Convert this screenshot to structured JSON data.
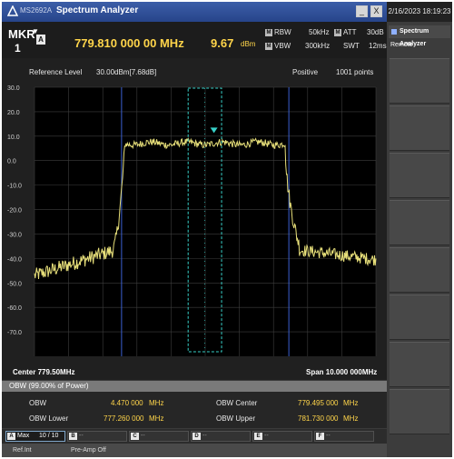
{
  "titlebar": {
    "model": "MS2692A",
    "app_name": "Spectrum Analyzer",
    "min_glyph": "_",
    "close_glyph": "X"
  },
  "right_panel": {
    "datetime": "2/16/2023 18:19:23",
    "title": "Spectrum Analyzer",
    "remote": "Remote"
  },
  "marker": {
    "label": "MKR",
    "arrow": "▼",
    "number": "1",
    "icon": "A",
    "frequency": "779.810 000 00 MHz",
    "level": "9.67",
    "level_unit": "dBm",
    "rbw_label": "RBW",
    "rbw_value": "50kHz",
    "vbw_label": "VBW",
    "vbw_value": "300kHz",
    "att_label": "ATT",
    "att_value": "30dB",
    "swt_label": "SWT",
    "swt_value": "12ms",
    "param_icon": "M"
  },
  "graph": {
    "ref_label": "Reference Level",
    "ref_value": "30.00dBm[7.68dB]",
    "detector": "Positive",
    "points": "1001 points",
    "y_ticks": [
      "30.0",
      "20.0",
      "10.0",
      "0.0",
      "-10.0",
      "-20.0",
      "-30.0",
      "-40.0",
      "-50.0",
      "-60.0",
      "-70.0"
    ],
    "center": "Center 779.50MHz",
    "span": "Span 10.000 000MHz",
    "colors": {
      "trace": "#e8e07a",
      "grid": "#3e3e3e",
      "marker": "#37d0c8",
      "obw_line": "#3a5fd0",
      "background": "#000000"
    },
    "trace_profile": {
      "x_from": 0,
      "x_to": 1,
      "floor_left": -47.0,
      "floor_right": -40.5,
      "plateau": 7.0,
      "band_start": 0.265,
      "band_end": 0.735
    }
  },
  "obw": {
    "title": "OBW (99.00% of Power)",
    "obw_label": "OBW",
    "obw_value": "4.470 000",
    "obw_unit": "MHz",
    "center_label": "OBW Center",
    "center_value": "779.495 000",
    "center_unit": "MHz",
    "lower_label": "OBW Lower",
    "lower_value": "777.260 000",
    "lower_unit": "MHz",
    "upper_label": "OBW Upper",
    "upper_value": "781.730 000",
    "upper_unit": "MHz"
  },
  "trace_bar": {
    "active_icon": "A",
    "active_label": "Max",
    "active_count": "10 / 10",
    "slots": [
      {
        "icon": "B",
        "value": "--"
      },
      {
        "icon": "C",
        "value": "--"
      },
      {
        "icon": "D",
        "value": "--"
      },
      {
        "icon": "E",
        "value": "--"
      },
      {
        "icon": "F",
        "value": "--"
      }
    ]
  },
  "status_bar": {
    "ref": "Ref.Int",
    "preamp": "Pre-Amp Off"
  }
}
